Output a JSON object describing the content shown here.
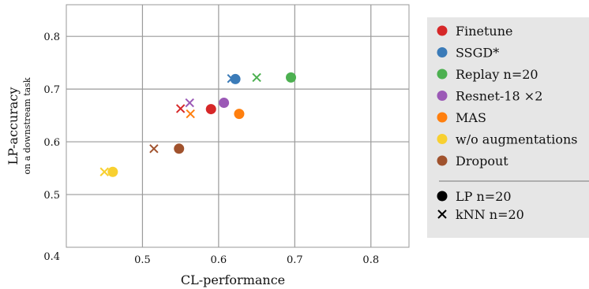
{
  "chart_data": {
    "type": "scatter",
    "xlabel": "CL-performance",
    "ylabel": "LP-accuracy",
    "ylabel_sub": "on a downstream task",
    "xlim": [
      0.4,
      0.85
    ],
    "ylim": [
      0.4,
      0.86
    ],
    "x_ticks": [
      0.5,
      0.6,
      0.7,
      0.8
    ],
    "y_ticks": [
      0.5,
      0.6,
      0.7,
      0.8
    ],
    "x_tick_labels": [
      "0.5",
      "0.6",
      "0.7",
      "0.8"
    ],
    "y_tick_labels": [
      "0.5",
      "0.6",
      "0.7",
      "0.8"
    ],
    "origin_label": "0.4",
    "grid": true,
    "legend_position": "right",
    "series": [
      {
        "name": "Finetune",
        "color": "#d62728",
        "lp": [
          0.59,
          0.662
        ],
        "knn": [
          0.55,
          0.663
        ]
      },
      {
        "name": "SSGD*",
        "color": "#3b7bb8",
        "lp": [
          0.622,
          0.719
        ],
        "knn": [
          0.617,
          0.72
        ]
      },
      {
        "name": "Replay n=20",
        "color": "#4cb050",
        "lp": [
          0.695,
          0.722
        ],
        "knn": [
          0.65,
          0.722
        ]
      },
      {
        "name": "Resnet-18 ×2",
        "color": "#9b59b6",
        "lp": [
          0.607,
          0.674
        ],
        "knn": [
          0.562,
          0.674
        ]
      },
      {
        "name": "MAS",
        "color": "#ff7f0e",
        "lp": [
          0.627,
          0.653
        ],
        "knn": [
          0.563,
          0.653
        ]
      },
      {
        "name": "w/o augmentations",
        "color": "#f8d030",
        "lp": [
          0.461,
          0.543
        ],
        "knn": [
          0.45,
          0.543
        ]
      },
      {
        "name": "Dropout",
        "color": "#a0522d",
        "lp": [
          0.548,
          0.587
        ],
        "knn": [
          0.515,
          0.587
        ]
      }
    ],
    "marker_legend": [
      {
        "label": "LP n=20",
        "marker": "circle"
      },
      {
        "label": "kNN n=20",
        "marker": "cross"
      }
    ]
  }
}
